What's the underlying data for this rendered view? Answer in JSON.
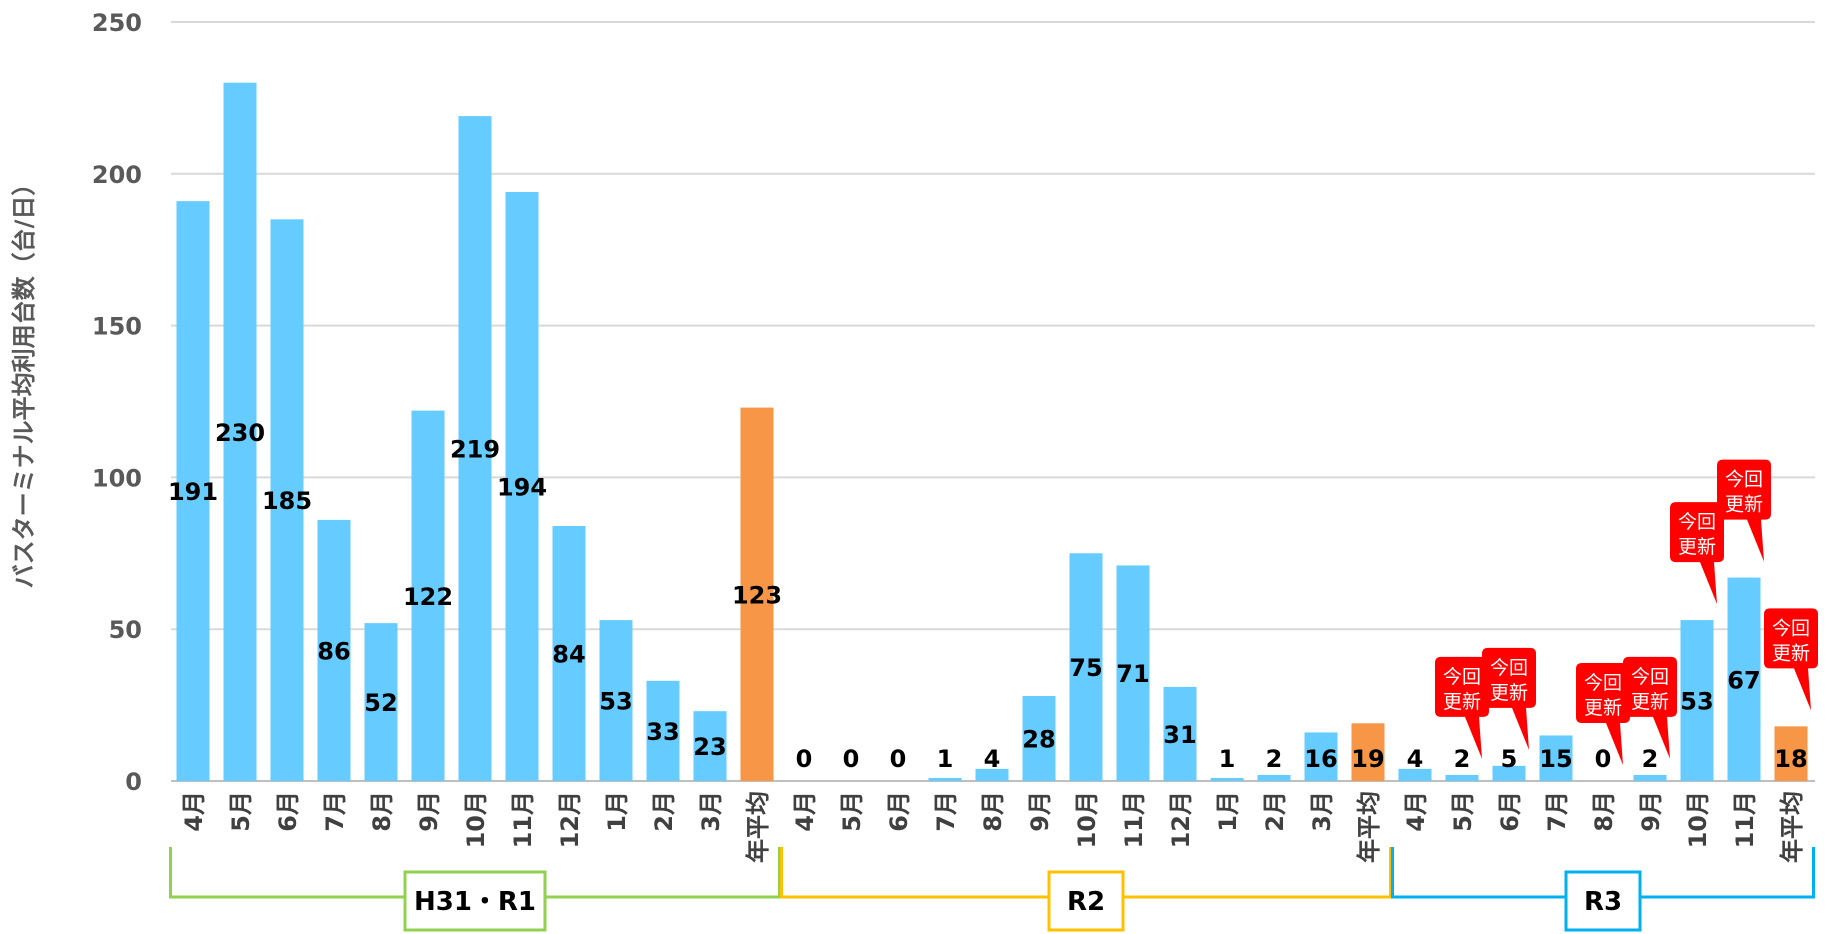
{
  "chart_data": {
    "type": "bar",
    "ylabel": "バスターミナル平均利用台数（台/日）",
    "ylim": [
      0,
      250
    ],
    "yticks": [
      0,
      50,
      100,
      150,
      200,
      250
    ],
    "grid": true,
    "colors": {
      "monthly": "#66cbff",
      "annual_average": "#f79646",
      "callout": "#ff0000"
    },
    "groups": [
      {
        "label": "H31・R1",
        "color": "#92d050",
        "categories": [
          "4月",
          "5月",
          "6月",
          "7月",
          "8月",
          "9月",
          "10月",
          "11月",
          "12月",
          "1月",
          "2月",
          "3月",
          "年平均"
        ],
        "values": [
          191,
          230,
          185,
          86,
          52,
          122,
          219,
          194,
          84,
          53,
          33,
          23,
          123
        ],
        "updated": []
      },
      {
        "label": "R2",
        "color": "#ffc000",
        "categories": [
          "4月",
          "5月",
          "6月",
          "7月",
          "8月",
          "9月",
          "10月",
          "11月",
          "12月",
          "1月",
          "2月",
          "3月",
          "年平均"
        ],
        "values": [
          0,
          0,
          0,
          1,
          4,
          28,
          75,
          71,
          31,
          1,
          2,
          16,
          19
        ],
        "updated": []
      },
      {
        "label": "R3",
        "color": "#00b0f0",
        "categories": [
          "4月",
          "5月",
          "6月",
          "7月",
          "8月",
          "9月",
          "10月",
          "11月",
          "年平均"
        ],
        "values": [
          4,
          2,
          5,
          15,
          0,
          2,
          53,
          67,
          18
        ],
        "updated": [
          "5月",
          "6月",
          "8月",
          "9月",
          "10月",
          "11月",
          "年平均"
        ]
      }
    ],
    "callout_text": [
      "今回",
      "更新"
    ]
  }
}
